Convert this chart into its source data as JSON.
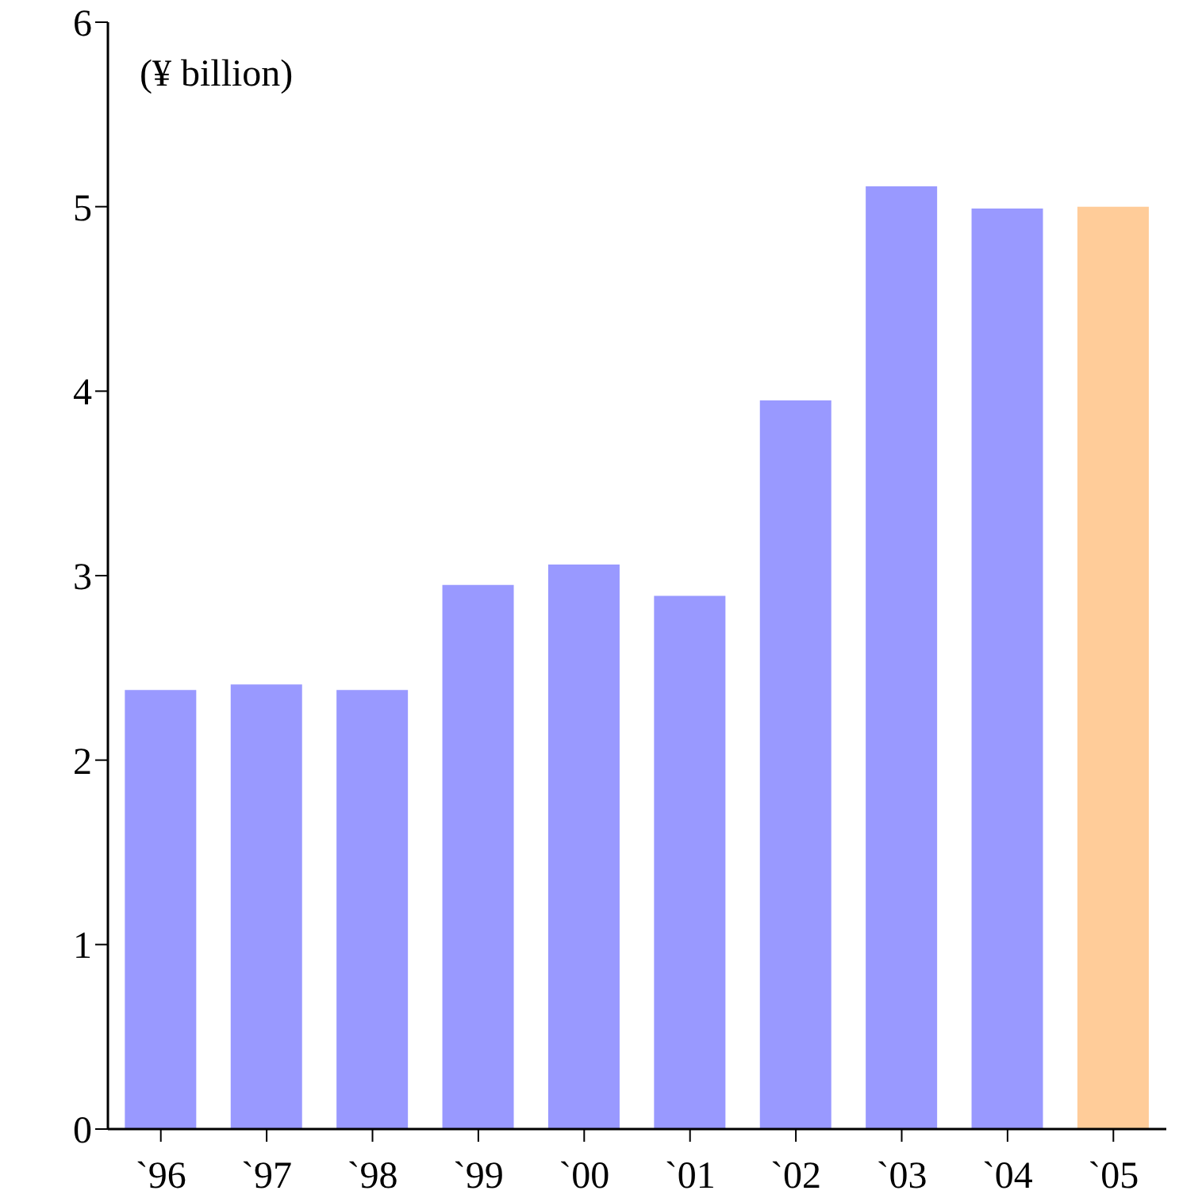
{
  "chart_data": {
    "type": "bar",
    "ylabel": "(¥ billion)",
    "categories": [
      "`96",
      "`97",
      "`98",
      "`99",
      "`00",
      "`01",
      "`02",
      "`03",
      "`04",
      "`05"
    ],
    "values": [
      2.38,
      2.41,
      2.38,
      2.95,
      3.06,
      2.89,
      3.95,
      5.11,
      4.99,
      5.0
    ],
    "colors": [
      "#9999ff",
      "#9999ff",
      "#9999ff",
      "#9999ff",
      "#9999ff",
      "#9999ff",
      "#9999ff",
      "#9999ff",
      "#9999ff",
      "#ffcc99"
    ],
    "ylim": [
      0,
      6
    ],
    "yticks": [
      0,
      1,
      2,
      3,
      4,
      5,
      6
    ],
    "grid": false,
    "legend": false
  }
}
